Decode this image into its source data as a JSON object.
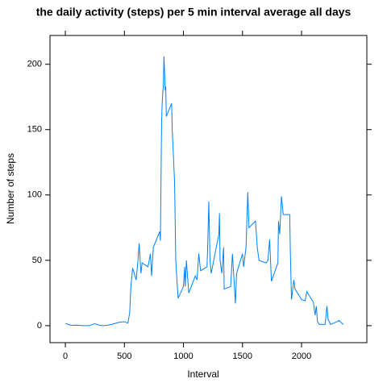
{
  "chart_data": {
    "type": "line",
    "title": "the daily activity (steps) per 5 min interval average all days",
    "x_label": "Interval",
    "y_label": "Number of steps",
    "xlim": [
      -130,
      2553
    ],
    "ylim": [
      -13,
      222
    ],
    "xticks": [
      0,
      500,
      1000,
      1500,
      2000
    ],
    "yticks": [
      0,
      50,
      100,
      150,
      200
    ],
    "series": [
      {
        "name": "steps",
        "color": "#0080ff",
        "x": [
          0,
          50,
          100,
          150,
          200,
          250,
          300,
          350,
          400,
          450,
          500,
          530,
          545,
          555,
          570,
          600,
          615,
          625,
          640,
          650,
          700,
          720,
          730,
          745,
          800,
          805,
          815,
          820,
          830,
          835,
          840,
          845,
          850,
          855,
          900,
          905,
          915,
          925,
          935,
          945,
          955,
          1000,
          1010,
          1015,
          1025,
          1045,
          1100,
          1115,
          1130,
          1145,
          1200,
          1205,
          1215,
          1225,
          1235,
          1300,
          1305,
          1310,
          1325,
          1340,
          1345,
          1400,
          1415,
          1425,
          1440,
          1450,
          1500,
          1510,
          1530,
          1545,
          1555,
          1610,
          1625,
          1640,
          1700,
          1715,
          1730,
          1745,
          1800,
          1805,
          1815,
          1830,
          1845,
          1900,
          1905,
          1915,
          1935,
          1945,
          2000,
          2030,
          2045,
          2100,
          2115,
          2125,
          2135,
          2150,
          2200,
          2215,
          2225,
          2245,
          2300,
          2320,
          2340,
          2355
        ],
        "values": [
          1.7,
          0.3,
          0.4,
          0,
          0,
          1.5,
          0,
          0.2,
          1.2,
          2.5,
          3,
          2,
          10,
          30,
          44,
          35,
          50,
          63,
          40,
          48,
          45,
          55,
          38,
          60,
          72,
          65,
          155,
          170,
          185,
          206,
          195,
          180,
          183,
          160,
          170,
          150,
          130,
          110,
          50,
          35,
          21,
          30,
          45,
          30,
          50,
          25,
          38,
          35,
          55,
          42,
          45,
          60,
          95,
          50,
          40,
          70,
          86,
          50,
          40,
          60,
          28,
          30,
          55,
          40,
          17,
          40,
          55,
          45,
          60,
          102,
          75,
          80,
          60,
          50,
          48,
          50,
          66,
          34,
          48,
          80,
          70,
          99,
          85,
          85,
          58,
          20,
          35,
          28,
          20,
          19,
          26,
          18,
          8,
          15,
          3,
          1,
          1,
          15,
          5,
          1,
          3,
          4,
          2,
          1
        ]
      }
    ]
  }
}
